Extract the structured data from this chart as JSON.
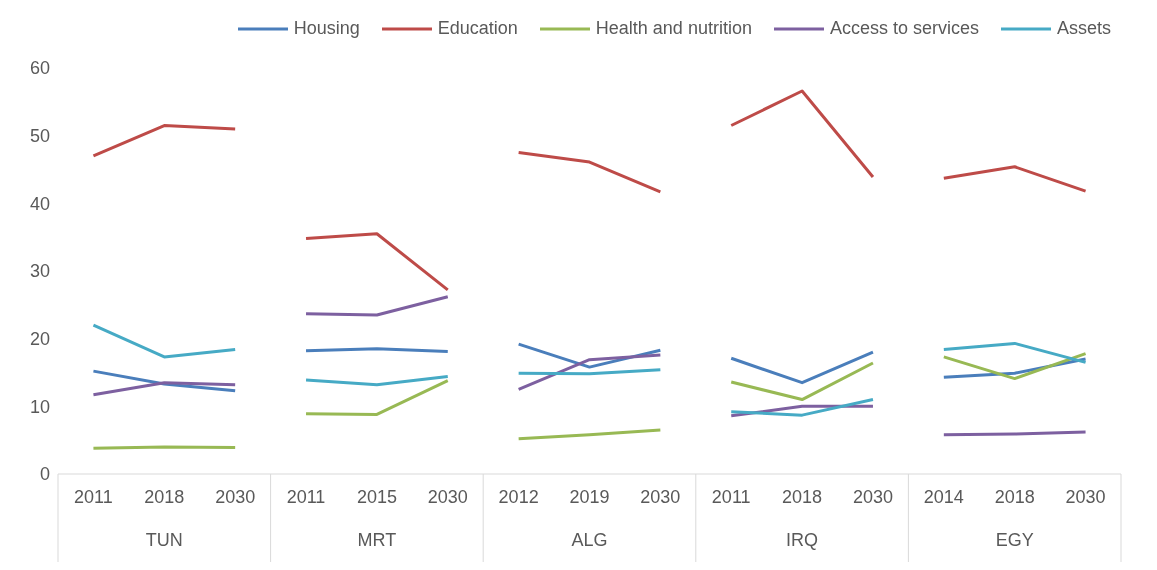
{
  "chart_data": {
    "type": "line",
    "categories": [
      "2011",
      "2018",
      "2030",
      "2011",
      "2015",
      "2030",
      "2012",
      "2019",
      "2030",
      "2011",
      "2018",
      "2030",
      "2014",
      "2018",
      "2030"
    ],
    "annotations": [
      "TUN",
      "MRT",
      "ALG",
      "IRQ",
      "EGY"
    ],
    "series": [
      {
        "name": "Housing",
        "color": "#4a7ebb",
        "values": [
          15.2,
          13.3,
          12.3,
          18.2,
          18.5,
          18.1,
          19.2,
          15.8,
          18.3,
          17.1,
          13.5,
          18.0,
          14.3,
          14.9,
          17.0
        ]
      },
      {
        "name": "Education",
        "color": "#be4b48",
        "values": [
          47,
          51.5,
          51,
          34.8,
          35.5,
          27.2,
          47.5,
          46.1,
          41.7,
          51.5,
          56.6,
          43.9,
          43.7,
          45.4,
          41.8
        ]
      },
      {
        "name": "Health and nutrition",
        "color": "#98b954",
        "values": [
          3.8,
          4.0,
          3.9,
          8.9,
          8.8,
          13.8,
          5.2,
          5.8,
          6.5,
          13.6,
          11.0,
          16.4,
          17.3,
          14.1,
          17.8
        ]
      },
      {
        "name": "Access to services",
        "color": "#7d60a0",
        "values": [
          11.7,
          13.5,
          13.2,
          23.7,
          23.5,
          26.2,
          12.5,
          16.9,
          17.6,
          8.6,
          10.0,
          10.0,
          5.8,
          5.9,
          6.2
        ]
      },
      {
        "name": "Assets",
        "color": "#46aac5",
        "values": [
          22,
          17.3,
          18.4,
          13.9,
          13.2,
          14.4,
          14.9,
          14.8,
          15.4,
          9.2,
          8.7,
          11.0,
          18.4,
          19.3,
          16.5
        ]
      }
    ],
    "ylim": [
      0,
      60
    ],
    "yticks": [
      0,
      10,
      20,
      30,
      40,
      50,
      60
    ],
    "grid": false,
    "legend": "top",
    "marker": "none",
    "line_style": "solid"
  }
}
